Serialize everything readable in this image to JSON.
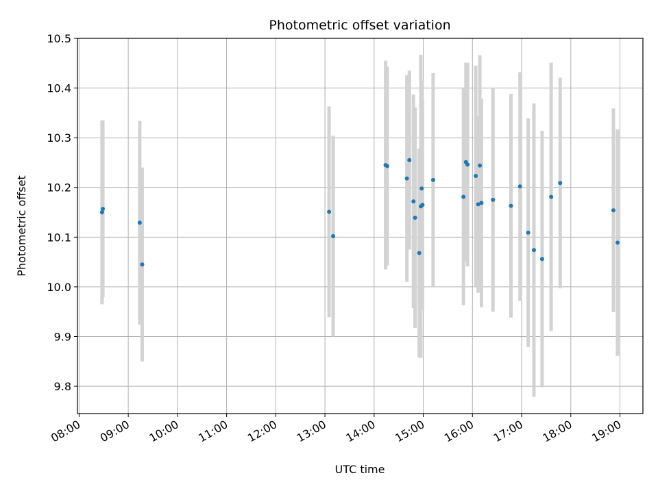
{
  "chart_data": {
    "type": "scatter",
    "title": "Photometric offset variation",
    "xlabel": "UTC time",
    "ylabel": "Photometric offset",
    "x_tick_labels": [
      "08:00",
      "09:00",
      "10:00",
      "11:00",
      "12:00",
      "13:00",
      "14:00",
      "15:00",
      "16:00",
      "17:00",
      "18:00",
      "19:00"
    ],
    "y_tick_labels": [
      "9.8",
      "9.9",
      "10.0",
      "10.1",
      "10.2",
      "10.3",
      "10.4",
      "10.5"
    ],
    "xlim": [
      "07:58",
      "19:28"
    ],
    "ylim": [
      9.745,
      10.5
    ],
    "grid": true,
    "colors": {
      "point": "#1f77b4",
      "errorbar": "#d3d3d3",
      "grid": "#b0b0b0"
    },
    "series": [
      {
        "points": [
          {
            "x": "08:28",
            "y": 10.15,
            "err": 0.185
          },
          {
            "x": "08:29",
            "y": 10.157,
            "err": 0.178
          },
          {
            "x": "09:14",
            "y": 10.129,
            "err": 0.205
          },
          {
            "x": "09:17",
            "y": 10.045,
            "err": 0.195
          },
          {
            "x": "13:05",
            "y": 10.151,
            "err": 0.212
          },
          {
            "x": "13:10",
            "y": 10.102,
            "err": 0.202
          },
          {
            "x": "14:14",
            "y": 10.245,
            "err": 0.21
          },
          {
            "x": "14:16",
            "y": 10.243,
            "err": 0.2
          },
          {
            "x": "14:40",
            "y": 10.218,
            "err": 0.208
          },
          {
            "x": "14:43",
            "y": 10.255,
            "err": 0.18
          },
          {
            "x": "14:48",
            "y": 10.172,
            "err": 0.215
          },
          {
            "x": "14:50",
            "y": 10.139,
            "err": 0.222
          },
          {
            "x": "14:55",
            "y": 10.068,
            "err": 0.21
          },
          {
            "x": "14:57",
            "y": 10.162,
            "err": 0.305
          },
          {
            "x": "14:58",
            "y": 10.198,
            "err": 0.217
          },
          {
            "x": "14:59",
            "y": 10.165,
            "err": 0.212
          },
          {
            "x": "15:12",
            "y": 10.215,
            "err": 0.215
          },
          {
            "x": "15:49",
            "y": 10.181,
            "err": 0.218
          },
          {
            "x": "15:52",
            "y": 10.251,
            "err": 0.2
          },
          {
            "x": "15:54",
            "y": 10.246,
            "err": 0.205
          },
          {
            "x": "16:04",
            "y": 10.223,
            "err": 0.222
          },
          {
            "x": "16:07",
            "y": 10.166,
            "err": 0.178
          },
          {
            "x": "16:09",
            "y": 10.244,
            "err": 0.222
          },
          {
            "x": "16:11",
            "y": 10.169,
            "err": 0.21
          },
          {
            "x": "16:25",
            "y": 10.175,
            "err": 0.225
          },
          {
            "x": "16:47",
            "y": 10.163,
            "err": 0.225
          },
          {
            "x": "16:58",
            "y": 10.202,
            "err": 0.23
          },
          {
            "x": "17:08",
            "y": 10.109,
            "err": 0.23
          },
          {
            "x": "17:15",
            "y": 10.074,
            "err": 0.295
          },
          {
            "x": "17:25",
            "y": 10.056,
            "err": 0.258
          },
          {
            "x": "17:36",
            "y": 10.181,
            "err": 0.27
          },
          {
            "x": "17:47",
            "y": 10.209,
            "err": 0.212
          },
          {
            "x": "18:52",
            "y": 10.154,
            "err": 0.205
          },
          {
            "x": "18:57",
            "y": 10.089,
            "err": 0.228
          }
        ]
      }
    ]
  }
}
